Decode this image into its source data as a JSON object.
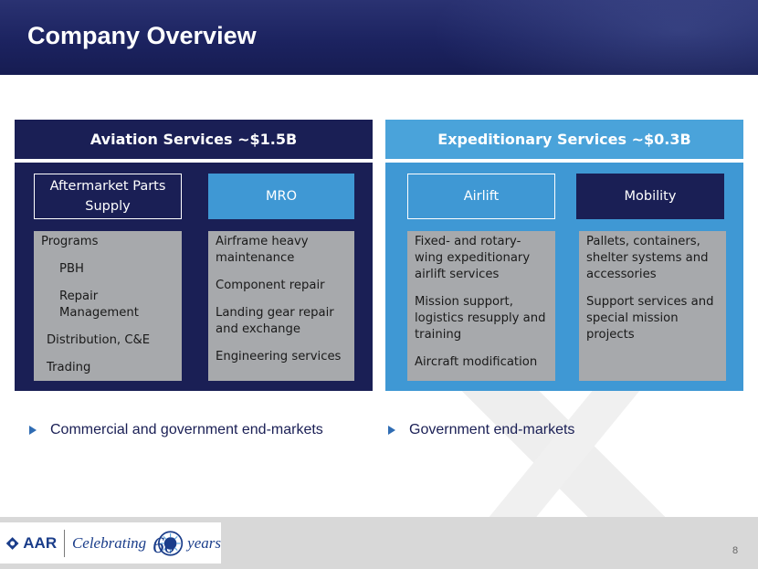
{
  "slide": {
    "title": "Company Overview",
    "page_number": "8"
  },
  "left_panel": {
    "header": "Aviation Services ~$1.5B",
    "tab_1": "Aftermarket Parts Supply",
    "tab_2": "MRO",
    "box_1": {
      "items": [
        "Programs",
        "PBH",
        "Repair Management",
        "Distribution, C&E",
        "Trading"
      ]
    },
    "box_2": {
      "items": [
        "Airframe heavy maintenance",
        "Component repair",
        "Landing gear repair and exchange",
        "Engineering services"
      ]
    },
    "bullet": "Commercial and government end-markets"
  },
  "right_panel": {
    "header": "Expeditionary Services ~$0.3B",
    "tab_1": "Airlift",
    "tab_2": "Mobility",
    "box_1": {
      "items": [
        "Fixed- and rotary-wing expeditionary airlift services",
        "Mission support, logistics resupply and training",
        "Aircraft modification"
      ]
    },
    "box_2": {
      "items": [
        "Pallets, containers, shelter systems and accessories",
        "Support services and special mission projects"
      ]
    },
    "bullet": "Government end-markets"
  },
  "footer": {
    "logo_text": "AAR",
    "celebrating": "Celebrating",
    "sixty": "60",
    "years": "years"
  },
  "colors": {
    "navy": "#1a1f55",
    "blue": "#3f98d4",
    "gray_box": "#a7a9ac"
  }
}
